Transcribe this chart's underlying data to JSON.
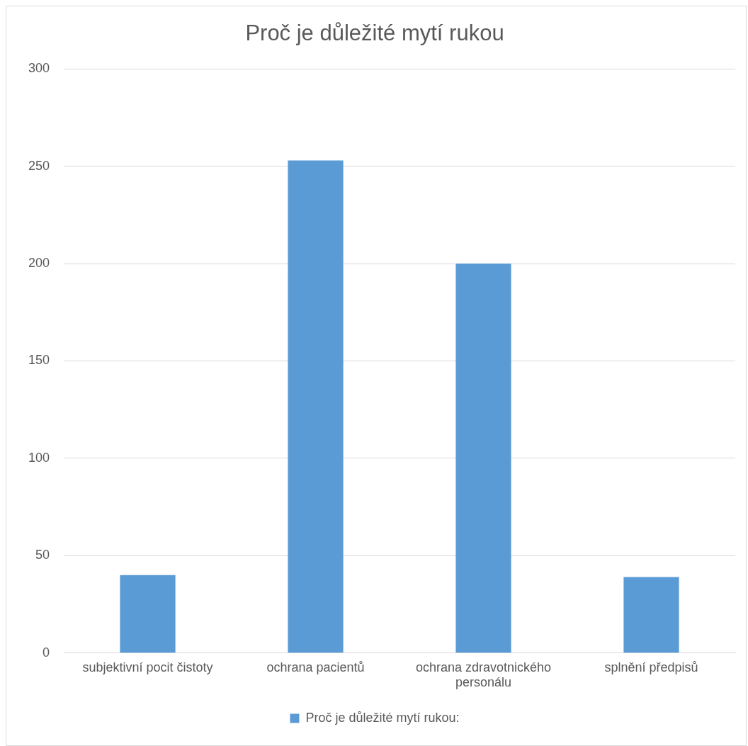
{
  "chart_data": {
    "type": "bar",
    "title": "Proč je důležité mytí rukou",
    "categories": [
      "subjektivní pocit čistoty",
      "ochrana pacientů",
      "ochrana zdravotnického personálu",
      "splnění předpisů"
    ],
    "series": [
      {
        "name": "Proč je důležité mytí rukou:",
        "color": "#5b9bd5",
        "values": [
          40,
          253,
          200,
          39
        ]
      }
    ],
    "ylim": [
      0,
      300
    ],
    "yticks": [
      0,
      50,
      100,
      150,
      200,
      250,
      300
    ],
    "grid": "y",
    "legend": "bottom"
  }
}
